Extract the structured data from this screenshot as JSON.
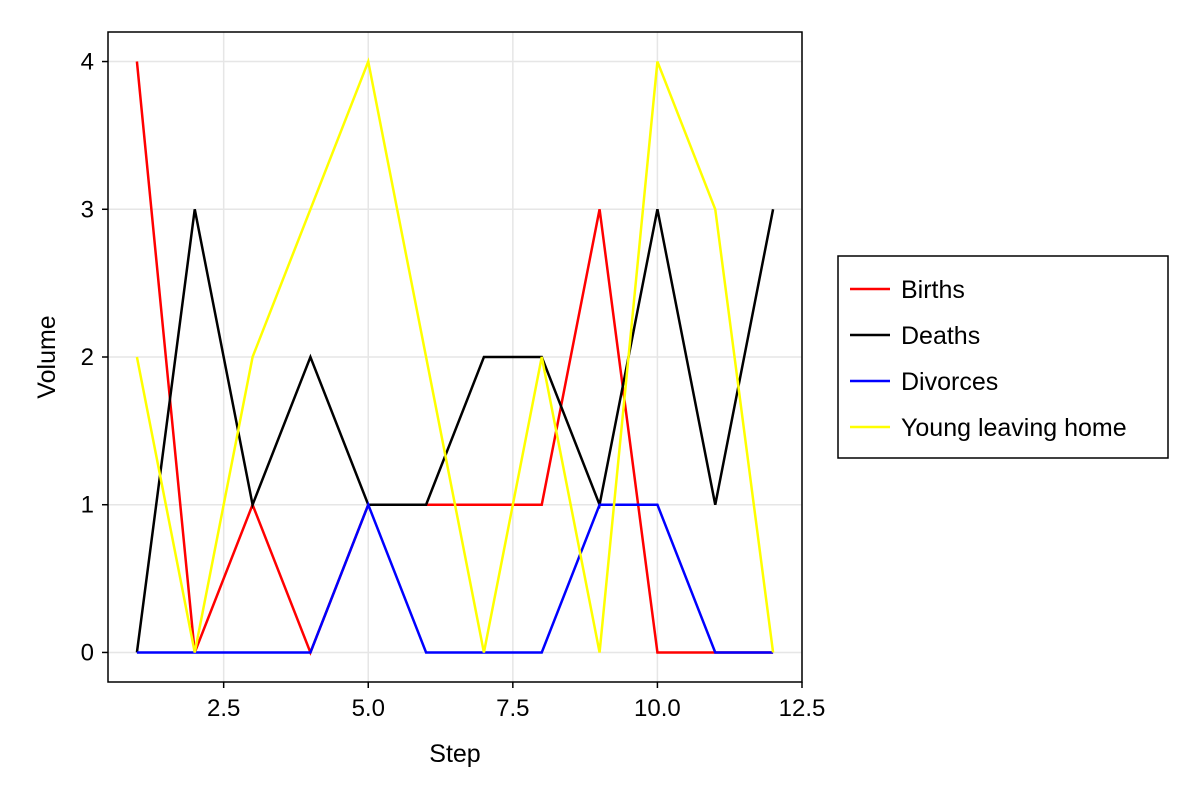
{
  "chart_data": {
    "type": "line",
    "xlabel": "Step",
    "ylabel": "Volume",
    "xlim": [
      0.5,
      12.5
    ],
    "ylim": [
      -0.2,
      4.2
    ],
    "x_ticks": [
      2.5,
      5.0,
      7.5,
      10.0,
      12.5
    ],
    "x_tick_labels": [
      "2.5",
      "5.0",
      "7.5",
      "10.0",
      "12.5"
    ],
    "y_ticks": [
      0,
      1,
      2,
      3,
      4
    ],
    "y_tick_labels": [
      "0",
      "1",
      "2",
      "3",
      "4"
    ],
    "grid": true,
    "legend_position": "right",
    "x": [
      1,
      2,
      3,
      4,
      5,
      6,
      7,
      8,
      9,
      10,
      11,
      12
    ],
    "series": [
      {
        "name": "Births",
        "color": "#ff0000",
        "values": [
          4,
          0,
          1,
          0,
          1,
          1,
          1,
          1,
          3,
          0,
          0,
          0
        ]
      },
      {
        "name": "Deaths",
        "color": "#000000",
        "values": [
          0,
          3,
          1,
          2,
          1,
          1,
          2,
          2,
          1,
          3,
          1,
          3
        ]
      },
      {
        "name": "Divorces",
        "color": "#0000ff",
        "values": [
          0,
          0,
          0,
          0,
          1,
          0,
          0,
          0,
          1,
          1,
          0,
          0
        ]
      },
      {
        "name": "Young leaving home",
        "color": "#ffff00",
        "values": [
          2,
          0,
          2,
          3,
          4,
          2,
          0,
          2,
          0,
          4,
          3,
          0
        ]
      }
    ]
  }
}
